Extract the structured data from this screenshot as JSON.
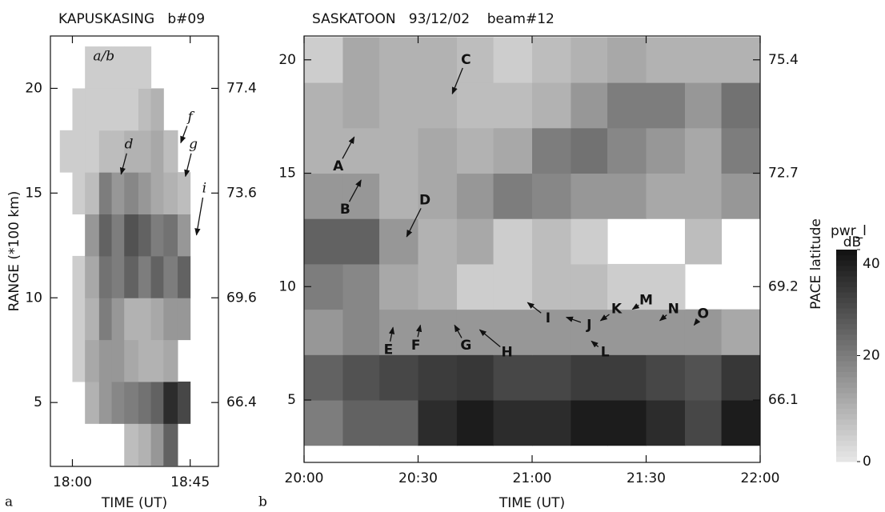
{
  "chart_data": [
    {
      "type": "heatmap",
      "title": "KAPUSKASING   b#09",
      "panel_label": "a",
      "xlabel": "TIME (UT)",
      "ylabel": "RANGE (*100 km)",
      "xlim": [
        17.86,
        18.93
      ],
      "ylim": [
        1.95,
        22.5
      ],
      "xticks": [
        {
          "value": 18,
          "label": "18:00"
        },
        {
          "value": 18.75,
          "label": "18:45"
        }
      ],
      "yticks": [
        5,
        10,
        15,
        20
      ],
      "lat_labels": [
        "66.4",
        "69.6",
        "73.6",
        "77.4"
      ],
      "x_bins": [
        17.92,
        18.0,
        18.08,
        18.17,
        18.25,
        18.33,
        18.42,
        18.5,
        18.58,
        18.67,
        18.75,
        18.83,
        18.92
      ],
      "y_bins": [
        2,
        4,
        6,
        8,
        10,
        12,
        14,
        16,
        18,
        20,
        22
      ],
      "z": [
        [
          null,
          null,
          null,
          null,
          null,
          8,
          10,
          15,
          25,
          null,
          null,
          null
        ],
        [
          null,
          null,
          10,
          15,
          18,
          20,
          22,
          25,
          35,
          30,
          null,
          null
        ],
        [
          null,
          5,
          12,
          15,
          15,
          12,
          10,
          10,
          12,
          null,
          null,
          null
        ],
        [
          null,
          5,
          10,
          20,
          15,
          10,
          10,
          12,
          15,
          15,
          null,
          null
        ],
        [
          null,
          5,
          12,
          22,
          20,
          25,
          20,
          25,
          20,
          25,
          null,
          null
        ],
        [
          null,
          null,
          15,
          25,
          20,
          28,
          25,
          20,
          22,
          15,
          null,
          null
        ],
        [
          null,
          5,
          8,
          20,
          15,
          18,
          15,
          12,
          10,
          8,
          null,
          null
        ],
        [
          5,
          5,
          5,
          8,
          8,
          10,
          10,
          12,
          8,
          null,
          null,
          null
        ],
        [
          null,
          5,
          5,
          5,
          5,
          5,
          8,
          10,
          null,
          null,
          null,
          null
        ],
        [
          null,
          null,
          5,
          5,
          5,
          5,
          5,
          null,
          null,
          null,
          null,
          null
        ]
      ],
      "zlim": [
        0,
        40
      ],
      "annotation_style": "italic",
      "annotations": [
        {
          "text": "a/b",
          "x": 18.2,
          "y": 21.5
        },
        {
          "text": "d",
          "x": 18.36,
          "y": 17.3,
          "tip": [
            18.31,
            15.9
          ]
        },
        {
          "text": "f",
          "x": 18.75,
          "y": 18.6,
          "tip": [
            18.69,
            17.4
          ]
        },
        {
          "text": "g",
          "x": 18.77,
          "y": 17.3,
          "tip": [
            18.72,
            15.8
          ]
        },
        {
          "text": "i",
          "x": 18.84,
          "y": 15.2,
          "tip": [
            18.79,
            13.0
          ]
        }
      ]
    },
    {
      "type": "heatmap",
      "title": "SASKATOON   93/12/02    beam#12",
      "panel_label": "b",
      "xlabel": "TIME (UT)",
      "y2label": "PACE latitude",
      "xlim": [
        20,
        22
      ],
      "ylim": [
        2.25,
        21.05
      ],
      "xticks": [
        {
          "value": 20,
          "label": "20:00"
        },
        {
          "value": 20.5,
          "label": "20:30"
        },
        {
          "value": 21,
          "label": "21:00"
        },
        {
          "value": 21.5,
          "label": "21:30"
        },
        {
          "value": 22,
          "label": "22:00"
        }
      ],
      "yticks": [
        5,
        10,
        15,
        20
      ],
      "lat_labels": [
        "66.1",
        "69.2",
        "72.7",
        "75.4"
      ],
      "x_bins": [
        20,
        20.17,
        20.33,
        20.5,
        20.67,
        20.83,
        21,
        21.17,
        21.33,
        21.5,
        21.67,
        21.83,
        22
      ],
      "y_bins": [
        3,
        5,
        7,
        9,
        11,
        13,
        15,
        17,
        19,
        21
      ],
      "z": [
        [
          20,
          25,
          25,
          35,
          38,
          35,
          35,
          38,
          38,
          35,
          30,
          38
        ],
        [
          25,
          28,
          30,
          32,
          33,
          30,
          30,
          32,
          32,
          30,
          28,
          33
        ],
        [
          15,
          18,
          15,
          15,
          15,
          15,
          15,
          15,
          15,
          15,
          15,
          12
        ],
        [
          20,
          18,
          12,
          10,
          5,
          5,
          8,
          8,
          5,
          5,
          null,
          null
        ],
        [
          25,
          25,
          15,
          10,
          12,
          5,
          8,
          5,
          null,
          null,
          8,
          null
        ],
        [
          15,
          15,
          10,
          12,
          15,
          20,
          18,
          15,
          15,
          12,
          12,
          15
        ],
        [
          10,
          10,
          10,
          12,
          10,
          12,
          20,
          22,
          18,
          15,
          12,
          20
        ],
        [
          10,
          12,
          10,
          10,
          8,
          8,
          10,
          15,
          20,
          20,
          15,
          22
        ],
        [
          5,
          12,
          10,
          10,
          8,
          5,
          8,
          10,
          12,
          10,
          10,
          10
        ]
      ],
      "zlim": [
        0,
        40
      ],
      "colorbar": {
        "label": "pwr_l",
        "unit": "dB",
        "ticks": [
          0,
          20,
          40
        ]
      },
      "annotation_style": "bold",
      "annotations": [
        {
          "text": "A",
          "x": 20.15,
          "y": 15.3,
          "tip": [
            20.22,
            16.6
          ]
        },
        {
          "text": "B",
          "x": 20.18,
          "y": 13.4,
          "tip": [
            20.25,
            14.7
          ]
        },
        {
          "text": "C",
          "x": 20.71,
          "y": 20.0,
          "tip": [
            20.65,
            18.5
          ]
        },
        {
          "text": "D",
          "x": 20.53,
          "y": 13.8,
          "tip": [
            20.45,
            12.2
          ]
        },
        {
          "text": "E",
          "x": 20.37,
          "y": 7.2,
          "tip": [
            20.39,
            8.2
          ]
        },
        {
          "text": "F",
          "x": 20.49,
          "y": 7.4,
          "tip": [
            20.51,
            8.3
          ]
        },
        {
          "text": "G",
          "x": 20.71,
          "y": 7.4,
          "tip": [
            20.66,
            8.3
          ]
        },
        {
          "text": "H",
          "x": 20.89,
          "y": 7.1,
          "tip": [
            20.77,
            8.1
          ]
        },
        {
          "text": "I",
          "x": 21.07,
          "y": 8.6,
          "tip": [
            20.98,
            9.3
          ]
        },
        {
          "text": "J",
          "x": 21.25,
          "y": 8.3,
          "tip": [
            21.15,
            8.65
          ]
        },
        {
          "text": "K",
          "x": 21.37,
          "y": 9.0,
          "tip": [
            21.3,
            8.5
          ]
        },
        {
          "text": "L",
          "x": 21.32,
          "y": 7.1,
          "tip": [
            21.26,
            7.6
          ]
        },
        {
          "text": "M",
          "x": 21.5,
          "y": 9.4,
          "tip": [
            21.44,
            9.0
          ]
        },
        {
          "text": "N",
          "x": 21.62,
          "y": 9.0,
          "tip": [
            21.56,
            8.5
          ]
        },
        {
          "text": "O",
          "x": 21.75,
          "y": 8.8,
          "tip": [
            21.71,
            8.3
          ]
        }
      ]
    }
  ]
}
